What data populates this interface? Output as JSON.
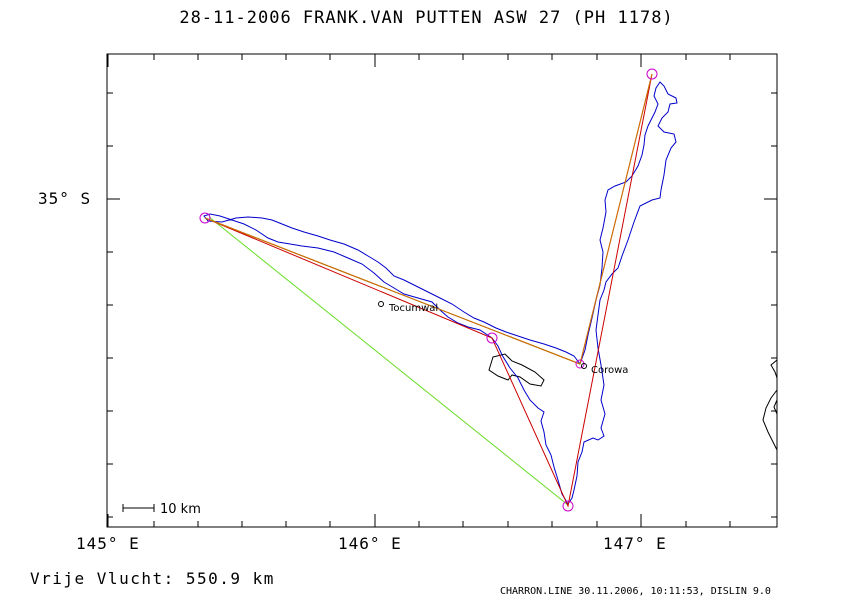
{
  "header": {
    "title": "28-11-2006   FRANK.VAN PUTTEN   ASW 27 (PH 1178)"
  },
  "axes": {
    "lat_label": "35° S",
    "lon_labels": [
      "145° E",
      "146° E",
      "147° E"
    ]
  },
  "map": {
    "towns": [
      {
        "name": "Tocumwal"
      },
      {
        "name": "Corowa"
      }
    ],
    "scale_bar": {
      "label": "10 km"
    },
    "colors": {
      "track": "#0000cc",
      "task_line": "#cc0000",
      "alt_task_line": "#66dd22",
      "leg_line": "#cc7700",
      "turnpoint": "#cc00cc",
      "border": "#000000"
    }
  },
  "stats": {
    "distance": "Vrije Vlucht:  550.9 km"
  },
  "footer": {
    "text": "CHARRON.LINE 30.11.2006, 10:11:53, DISLIN 9.0"
  }
}
